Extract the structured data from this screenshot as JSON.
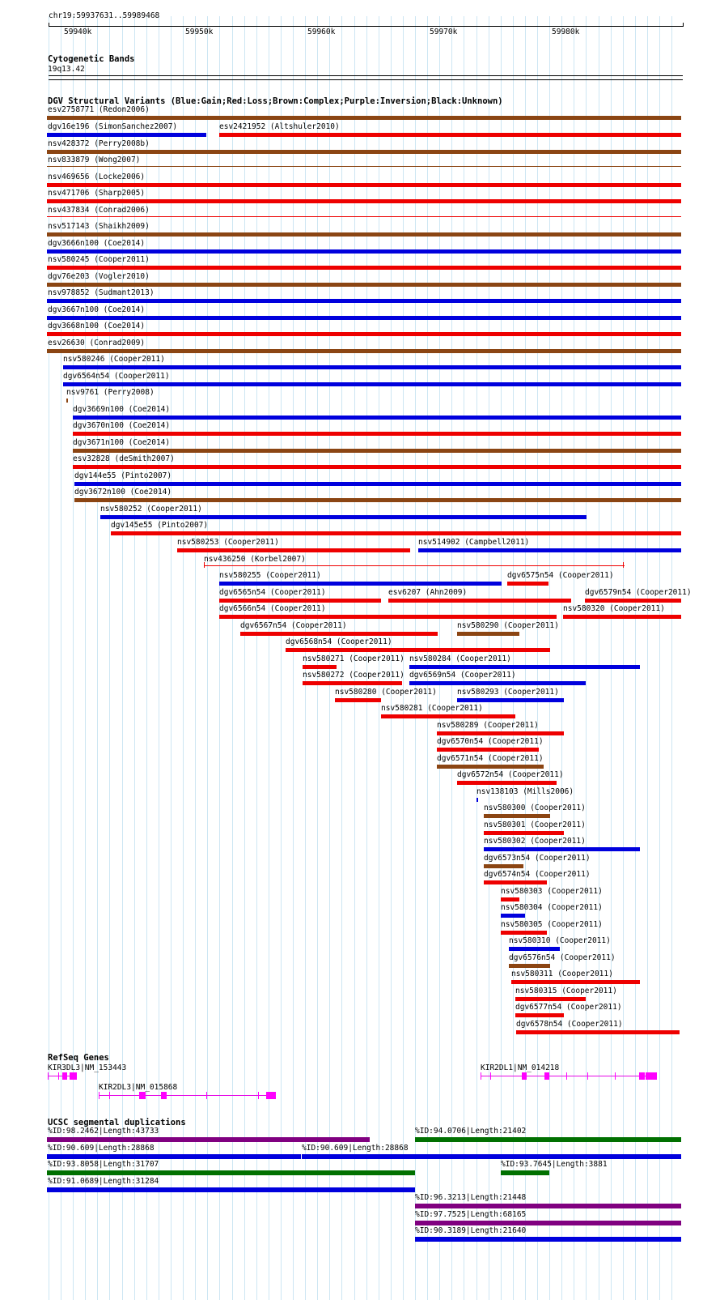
{
  "ruler": {
    "location": "chr19:59937631..59989468",
    "ticks": [
      "59940k",
      "59950k",
      "59960k",
      "59970k",
      "59980k"
    ]
  },
  "cytobands": {
    "title": "Cytogenetic Bands",
    "band": "19q13.42"
  },
  "dgv": {
    "title": "DGV Structural Variants (Blue:Gain;Red:Loss;Brown:Complex;Purple:Inversion;Black:Unknown)",
    "colors": {
      "gain": "#0000dd",
      "loss": "#ee0000",
      "complex": "#8b4513",
      "inversion": "#800080",
      "unknown": "#000000"
    },
    "variants": [
      {
        "label": "esv2758771 (Redon2006)",
        "color": "complex"
      },
      {
        "label": "dgv16e196 (SimonSanchez2007)",
        "color": "gain"
      },
      {
        "label": "esv2421952 (Altshuler2010)",
        "color": "loss"
      },
      {
        "label": "nsv428372 (Perry2008b)",
        "color": "complex"
      },
      {
        "label": "nsv833879 (Wong2007)",
        "color": "complex"
      },
      {
        "label": "nsv469656 (Locke2006)",
        "color": "loss"
      },
      {
        "label": "nsv471706 (Sharp2005)",
        "color": "loss"
      },
      {
        "label": "nsv437834 (Conrad2006)",
        "color": "loss"
      },
      {
        "label": "nsv517143 (Shaikh2009)",
        "color": "complex"
      },
      {
        "label": "dgv3666n100 (Coe2014)",
        "color": "gain"
      },
      {
        "label": "nsv580245 (Cooper2011)",
        "color": "loss"
      },
      {
        "label": "dgv76e203 (Vogler2010)",
        "color": "complex"
      },
      {
        "label": "nsv978852 (Sudmant2013)",
        "color": "gain"
      },
      {
        "label": "dgv3667n100 (Coe2014)",
        "color": "gain"
      },
      {
        "label": "dgv3668n100 (Coe2014)",
        "color": "loss"
      },
      {
        "label": "esv26630 (Conrad2009)",
        "color": "complex"
      },
      {
        "label": "nsv580246 (Cooper2011)",
        "color": "gain"
      },
      {
        "label": "dgv6564n54 (Cooper2011)",
        "color": "gain"
      },
      {
        "label": "nsv9761 (Perry2008)",
        "color": "complex"
      },
      {
        "label": "dgv3669n100 (Coe2014)",
        "color": "gain"
      },
      {
        "label": "dgv3670n100 (Coe2014)",
        "color": "loss"
      },
      {
        "label": "dgv3671n100 (Coe2014)",
        "color": "complex"
      },
      {
        "label": "esv32828 (deSmith2007)",
        "color": "loss"
      },
      {
        "label": "dgv144e55 (Pinto2007)",
        "color": "gain"
      },
      {
        "label": "dgv3672n100 (Coe2014)",
        "color": "complex"
      },
      {
        "label": "nsv580252 (Cooper2011)",
        "color": "gain"
      },
      {
        "label": "dgv145e55 (Pinto2007)",
        "color": "loss"
      },
      {
        "label": "nsv580253 (Cooper2011)",
        "color": "loss"
      },
      {
        "label": "nsv514902 (Campbell2011)",
        "color": "gain"
      },
      {
        "label": "nsv436250 (Korbel2007)",
        "color": "loss"
      },
      {
        "label": "nsv580255 (Cooper2011)",
        "color": "gain"
      },
      {
        "label": "dgv6575n54 (Cooper2011)",
        "color": "loss"
      },
      {
        "label": "dgv6565n54 (Cooper2011)",
        "color": "loss"
      },
      {
        "label": "esv6207 (Ahn2009)",
        "color": "loss"
      },
      {
        "label": "dgv6579n54 (Cooper2011)",
        "color": "loss"
      },
      {
        "label": "dgv6566n54 (Cooper2011)",
        "color": "loss"
      },
      {
        "label": "nsv580320 (Cooper2011)",
        "color": "loss"
      },
      {
        "label": "dgv6567n54 (Cooper2011)",
        "color": "loss"
      },
      {
        "label": "nsv580290 (Cooper2011)",
        "color": "complex"
      },
      {
        "label": "dgv6568n54 (Cooper2011)",
        "color": "loss"
      },
      {
        "label": "nsv580271 (Cooper2011)",
        "color": "loss"
      },
      {
        "label": "nsv580284 (Cooper2011)",
        "color": "gain"
      },
      {
        "label": "nsv580272 (Cooper2011)",
        "color": "loss"
      },
      {
        "label": "dgv6569n54 (Cooper2011)",
        "color": "gain"
      },
      {
        "label": "nsv580280 (Cooper2011)",
        "color": "loss"
      },
      {
        "label": "nsv580293 (Cooper2011)",
        "color": "gain"
      },
      {
        "label": "nsv580281 (Cooper2011)",
        "color": "loss"
      },
      {
        "label": "nsv580289 (Cooper2011)",
        "color": "loss"
      },
      {
        "label": "dgv6570n54 (Cooper2011)",
        "color": "loss"
      },
      {
        "label": "dgv6571n54 (Cooper2011)",
        "color": "complex"
      },
      {
        "label": "dgv6572n54 (Cooper2011)",
        "color": "loss"
      },
      {
        "label": "nsv138103 (Mills2006)",
        "color": "gain"
      },
      {
        "label": "nsv580300 (Cooper2011)",
        "color": "complex"
      },
      {
        "label": "nsv580301 (Cooper2011)",
        "color": "loss"
      },
      {
        "label": "nsv580302 (Cooper2011)",
        "color": "gain"
      },
      {
        "label": "dgv6573n54 (Cooper2011)",
        "color": "complex"
      },
      {
        "label": "dgv6574n54 (Cooper2011)",
        "color": "loss"
      },
      {
        "label": "nsv580303 (Cooper2011)",
        "color": "loss"
      },
      {
        "label": "nsv580304 (Cooper2011)",
        "color": "gain"
      },
      {
        "label": "nsv580305 (Cooper2011)",
        "color": "loss"
      },
      {
        "label": "nsv580310 (Cooper2011)",
        "color": "gain"
      },
      {
        "label": "dgv6576n54 (Cooper2011)",
        "color": "complex"
      },
      {
        "label": "nsv580311 (Cooper2011)",
        "color": "loss"
      },
      {
        "label": "nsv580315 (Cooper2011)",
        "color": "loss"
      },
      {
        "label": "dgv6577n54 (Cooper2011)",
        "color": "loss"
      },
      {
        "label": "dgv6578n54 (Cooper2011)",
        "color": "loss"
      }
    ]
  },
  "refseq": {
    "title": "RefSeq Genes",
    "genes": [
      {
        "label": "KIR3DL3|NM_153443"
      },
      {
        "label": "KIR2DL1|NM_014218"
      },
      {
        "label": "KIR2DL3|NM_015868"
      }
    ],
    "gene_color": "#ff00ff"
  },
  "segdups": {
    "title": "UCSC segmental duplications",
    "colors": {
      "purple": "#800080",
      "green": "#007000",
      "blue": "#0000dd"
    },
    "items": [
      {
        "label": "%ID:98.2462|Length:43733",
        "color": "purple"
      },
      {
        "label": "%ID:94.0706|Length:21402",
        "color": "green"
      },
      {
        "label": "%ID:90.609|Length:28868",
        "color": "blue"
      },
      {
        "label": "%ID:90.609|Length:28868",
        "color": "blue"
      },
      {
        "label": "%ID:93.8058|Length:31707",
        "color": "green"
      },
      {
        "label": "%ID:93.7645|Length:3881",
        "color": "green"
      },
      {
        "label": "%ID:91.0689|Length:31284",
        "color": "blue"
      },
      {
        "label": "%ID:96.3213|Length:21448",
        "color": "purple"
      },
      {
        "label": "%ID:97.7525|Length:68165",
        "color": "purple"
      },
      {
        "label": "%ID:90.3189|Length:21640",
        "color": "blue"
      }
    ]
  }
}
